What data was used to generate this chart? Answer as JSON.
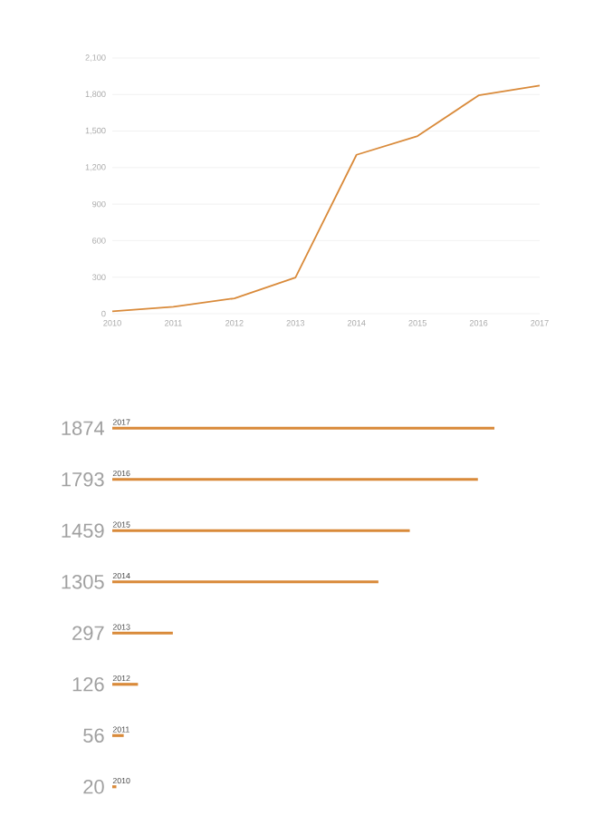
{
  "chart_data": [
    {
      "type": "line",
      "x": [
        2010,
        2011,
        2012,
        2013,
        2014,
        2015,
        2016,
        2017
      ],
      "values": [
        20,
        56,
        126,
        297,
        1305,
        1459,
        1793,
        1874
      ],
      "color": "#d98a3a",
      "xlim": [
        2010,
        2017
      ],
      "xticks": [
        2010,
        2011,
        2012,
        2013,
        2014,
        2015,
        2016,
        2017
      ],
      "ylim": [
        0,
        2100
      ],
      "yticks": [
        {
          "value": 0,
          "label": "0"
        },
        {
          "value": 300,
          "label": "300"
        },
        {
          "value": 600,
          "label": "600"
        },
        {
          "value": 900,
          "label": "900"
        },
        {
          "value": 1200,
          "label": "1,200"
        },
        {
          "value": 1500,
          "label": "1,500"
        },
        {
          "value": 1800,
          "label": "1,800"
        },
        {
          "value": 2100,
          "label": "2,100"
        }
      ],
      "grid": "y"
    },
    {
      "type": "bar",
      "orientation": "horizontal",
      "categories": [
        "2017",
        "2016",
        "2015",
        "2014",
        "2013",
        "2012",
        "2011",
        "2010"
      ],
      "values": [
        1874,
        1793,
        1459,
        1305,
        297,
        126,
        56,
        20
      ],
      "color": "#d98a3a",
      "data_labels": true
    }
  ]
}
